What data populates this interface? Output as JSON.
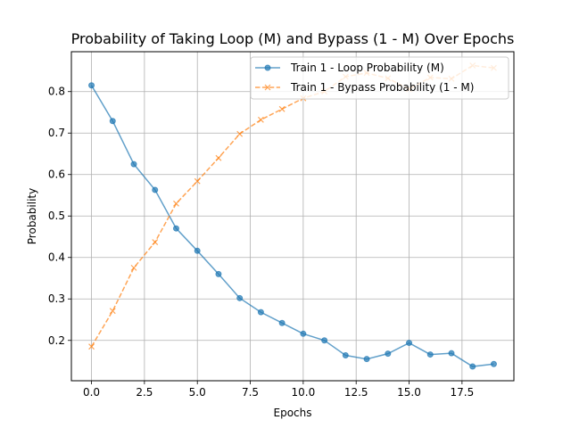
{
  "chart_data": {
    "type": "line",
    "title": "Probability of Taking Loop (M) and Bypass (1 - M) Over Epochs",
    "xlabel": "Epochs",
    "ylabel": "Probability",
    "xlim": [
      -0.95,
      19.95
    ],
    "ylim": [
      0.1027,
      0.8962
    ],
    "xticks": [
      0,
      2.5,
      5,
      7.5,
      10,
      12.5,
      15,
      17.5
    ],
    "xtick_labels": [
      "0.0",
      "2.5",
      "5.0",
      "7.5",
      "10.0",
      "12.5",
      "15.0",
      "17.5"
    ],
    "yticks": [
      0.2,
      0.3,
      0.4,
      0.5,
      0.6,
      0.7,
      0.8
    ],
    "ytick_labels": [
      "0.2",
      "0.3",
      "0.4",
      "0.5",
      "0.6",
      "0.7",
      "0.8"
    ],
    "grid": true,
    "legend_position": "top-right",
    "x": [
      0,
      1,
      2,
      3,
      4,
      5,
      6,
      7,
      8,
      9,
      10,
      11,
      12,
      13,
      14,
      15,
      16,
      17,
      18,
      19
    ],
    "series": [
      {
        "name": "Train 1 - Loop Probability (M)",
        "color": "#1f77b4",
        "marker": "circle",
        "linestyle": "solid",
        "values": [
          0.815,
          0.729,
          0.625,
          0.563,
          0.47,
          0.416,
          0.36,
          0.302,
          0.268,
          0.242,
          0.216,
          0.2,
          0.164,
          0.155,
          0.168,
          0.194,
          0.166,
          0.169,
          0.137,
          0.143
        ]
      },
      {
        "name": "Train 1 - Bypass Probability (1 - M)",
        "color": "#ff7f0e",
        "marker": "x",
        "linestyle": "dashed",
        "values": [
          0.185,
          0.271,
          0.375,
          0.437,
          0.53,
          0.584,
          0.64,
          0.698,
          0.732,
          0.758,
          0.784,
          0.8,
          0.836,
          0.845,
          0.832,
          0.806,
          0.834,
          0.831,
          0.863,
          0.857
        ]
      }
    ]
  }
}
